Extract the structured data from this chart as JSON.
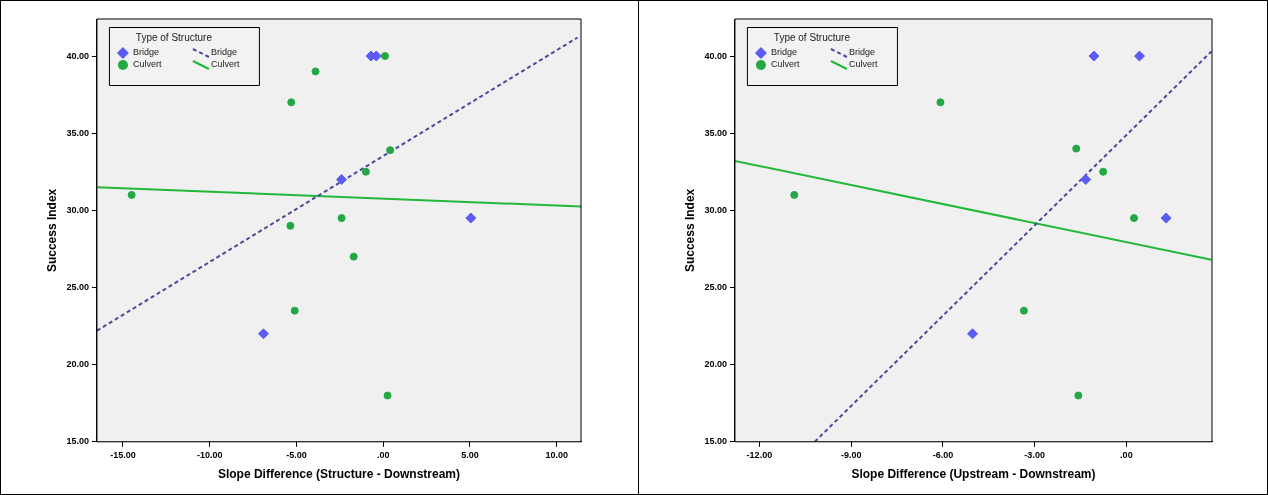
{
  "chart_data": [
    {
      "type": "scatter",
      "xlabel": "Slope Difference (Structure - Downstream)",
      "ylabel": "Success Index",
      "legend_title": "Type of Structure",
      "legend": "top left",
      "xlim": [
        -16.5,
        11.4
      ],
      "ylim": [
        15,
        42.4
      ],
      "xticks": [
        {
          "value": -15,
          "label": "-15.00"
        },
        {
          "value": -10,
          "label": "-10.00"
        },
        {
          "value": -5,
          "label": "-5.00"
        },
        {
          "value": 0,
          "label": ".00"
        },
        {
          "value": 5,
          "label": "5.00"
        },
        {
          "value": 10,
          "label": "10.00"
        }
      ],
      "yticks": [
        {
          "value": 15,
          "label": "15.00"
        },
        {
          "value": 20,
          "label": "20.00"
        },
        {
          "value": 25,
          "label": "25.00"
        },
        {
          "value": 30,
          "label": "30.00"
        },
        {
          "value": 35,
          "label": "35.00"
        },
        {
          "value": 40,
          "label": "40.00"
        }
      ],
      "series": [
        {
          "name": "Bridge",
          "type": "scatter",
          "marker": "diamond",
          "color": "#5b5bf5",
          "x": [
            -0.7,
            -0.4,
            -2.4,
            5.05,
            -6.9
          ],
          "values": [
            40,
            40,
            32,
            29.5,
            22
          ]
        },
        {
          "name": "Culvert",
          "type": "scatter",
          "marker": "circle",
          "color": "#22a845",
          "x": [
            0.1,
            -3.9,
            -5.3,
            0.4,
            -1.0,
            -14.5,
            -2.4,
            -5.35,
            -1.7,
            -5.1,
            0.25
          ],
          "values": [
            40,
            39,
            37,
            33.9,
            32.5,
            31,
            29.5,
            29,
            27,
            23.5,
            18
          ]
        },
        {
          "name": "Bridge",
          "type": "line",
          "marker": "none",
          "line_style": "dashed",
          "color": "#4a4a9a",
          "x": [
            -16.5,
            11.2
          ],
          "values": [
            22.2,
            41.2
          ]
        },
        {
          "name": "Culvert",
          "type": "line",
          "marker": "none",
          "line_style": "solid",
          "color": "#22b83a",
          "x": [
            -16.5,
            11.4
          ],
          "values": [
            31.5,
            30.25
          ]
        }
      ]
    },
    {
      "type": "scatter",
      "xlabel": "Slope Difference (Upstream - Downstream)",
      "ylabel": "Success Index",
      "legend_title": "Type of Structure",
      "legend": "top left",
      "xlim": [
        -12.8,
        2.8
      ],
      "ylim": [
        15,
        42.4
      ],
      "xticks": [
        {
          "value": -12,
          "label": "-12.00"
        },
        {
          "value": -9,
          "label": "-9.00"
        },
        {
          "value": -6,
          "label": "-6.00"
        },
        {
          "value": -3,
          "label": "-3.00"
        },
        {
          "value": 0,
          "label": ".00"
        }
      ],
      "yticks": [
        {
          "value": 15,
          "label": "15.00"
        },
        {
          "value": 20,
          "label": "20.00"
        },
        {
          "value": 25,
          "label": "25.00"
        },
        {
          "value": 30,
          "label": "30.00"
        },
        {
          "value": 35,
          "label": "35.00"
        },
        {
          "value": 40,
          "label": "40.00"
        }
      ],
      "series": [
        {
          "name": "Bridge",
          "type": "scatter",
          "marker": "diamond",
          "color": "#5b5bf5",
          "x": [
            -1.06,
            0.43,
            -1.33,
            1.3,
            -5.03
          ],
          "values": [
            40,
            40,
            32,
            29.5,
            22
          ]
        },
        {
          "name": "Culvert",
          "type": "scatter",
          "marker": "circle",
          "color": "#22a845",
          "x": [
            -6.08,
            -1.64,
            -0.76,
            -10.86,
            0.25,
            -3.35,
            -1.57
          ],
          "values": [
            37,
            34,
            32.5,
            31,
            29.5,
            23.5,
            18
          ]
        },
        {
          "name": "Bridge",
          "type": "line",
          "marker": "none",
          "line_style": "dashed",
          "color": "#4a4a9a",
          "x": [
            -10.19,
            2.78
          ],
          "values": [
            15,
            40.3
          ]
        },
        {
          "name": "Culvert",
          "type": "line",
          "marker": "none",
          "line_style": "solid",
          "color": "#22b83a",
          "x": [
            -12.8,
            2.78
          ],
          "values": [
            33.2,
            26.8
          ]
        }
      ]
    }
  ]
}
